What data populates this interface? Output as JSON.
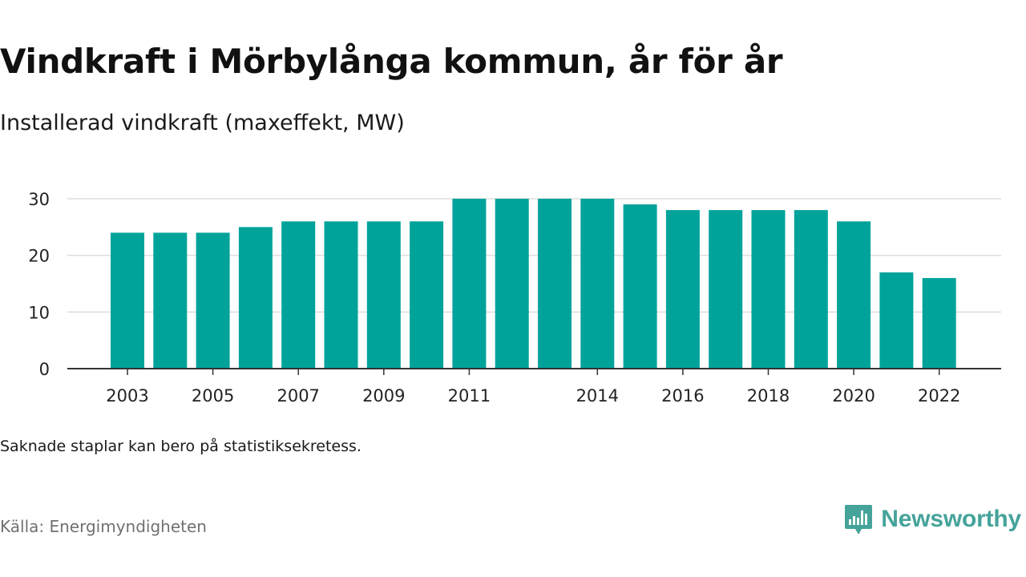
{
  "title": "Vindkraft i Mörbylånga kommun, år för år",
  "subtitle": "Installerad vindkraft (maxeffekt, MW)",
  "note": "Saknade staplar kan bero på statistiksekretess.",
  "source": "Källa: Energimyndigheten",
  "brand": {
    "name": "Newsworthy",
    "icon": "newsworthy-logo-icon"
  },
  "colors": {
    "bar": "#00a39a",
    "grid": "#dddddd",
    "axis": "#333333",
    "brand": "#45a39a"
  },
  "chart_data": {
    "type": "bar",
    "categories": [
      "2003",
      "2004",
      "2005",
      "2006",
      "2007",
      "2008",
      "2009",
      "2010",
      "2011",
      "2012",
      "2013",
      "2014",
      "2015",
      "2016",
      "2017",
      "2018",
      "2019",
      "2020",
      "2021",
      "2022"
    ],
    "x_tick_labels": [
      "2003",
      "2005",
      "2007",
      "2009",
      "2011",
      "2014",
      "2016",
      "2018",
      "2020",
      "2022"
    ],
    "values": [
      24,
      24,
      24,
      25,
      26,
      26,
      26,
      26,
      30,
      30,
      30,
      30,
      29,
      28,
      28,
      28,
      28,
      26,
      17,
      16
    ],
    "y_ticks": [
      0,
      10,
      20,
      30
    ],
    "ylim": [
      0,
      30
    ],
    "xlabel": "",
    "ylabel": "",
    "grid": true
  }
}
